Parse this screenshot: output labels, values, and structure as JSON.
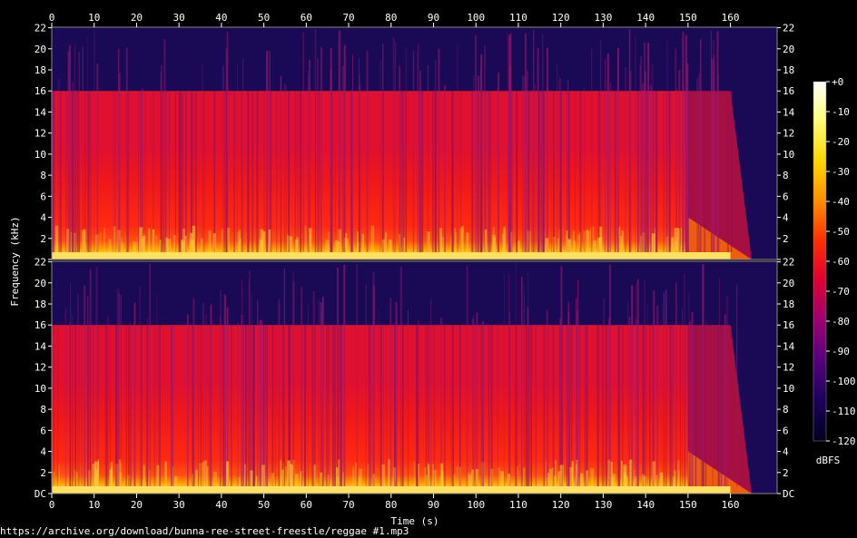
{
  "chart_data": {
    "type": "heatmap",
    "subtype": "spectrogram",
    "channels": 2,
    "xlabel": "Time (s)",
    "ylabel": "Frequency (kHz)",
    "x_ticks": [
      0,
      10,
      20,
      30,
      40,
      50,
      60,
      70,
      80,
      90,
      100,
      110,
      120,
      130,
      140,
      150,
      160
    ],
    "x_range": [
      0,
      171
    ],
    "audio_end_s": 165,
    "y_range_khz": [
      0,
      22.05
    ],
    "y_tick_values": [
      0,
      2,
      4,
      6,
      8,
      10,
      12,
      14,
      16,
      18,
      20,
      22
    ],
    "y_tick_labels": [
      "DC",
      "2",
      "4",
      "6",
      "8",
      "10",
      "12",
      "14",
      "16",
      "18",
      "20",
      "22"
    ],
    "lowpass_cutoff_khz": 16,
    "colorbar": {
      "label": "dBFS",
      "range": [
        -120,
        0
      ],
      "ticks": [
        "+0",
        "-10",
        "-20",
        "-30",
        "-40",
        "-50",
        "-60",
        "-70",
        "-80",
        "-90",
        "-100",
        "-110",
        "-120"
      ],
      "colormap": [
        "#ffffff",
        "#ffff80",
        "#ffd700",
        "#ff9000",
        "#ff3000",
        "#e00030",
        "#a00070",
        "#5a0080",
        "#200060",
        "#000020"
      ]
    },
    "grid": false,
    "legend": "right"
  },
  "footer": {
    "source": "https://archive.org/download/bunna-ree-street-freestle/reggae #1.mp3"
  }
}
